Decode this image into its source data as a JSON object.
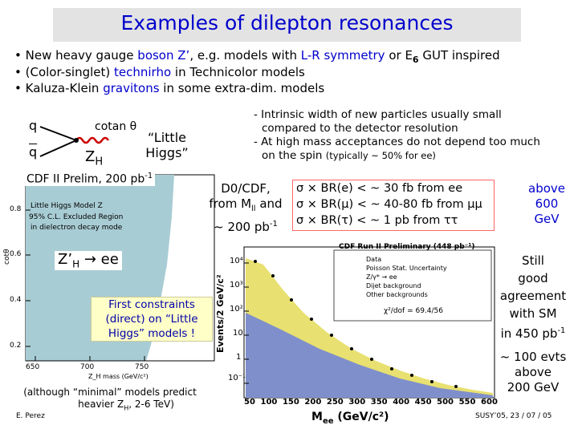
{
  "slide": {
    "title": "Examples of dilepton resonances",
    "bullets": [
      {
        "p1": "• New heavy gauge ",
        "k1": "boson Z’",
        ",": "",
        "p2": ", e.g. models with ",
        "k2": "L-R symmetry",
        "p3": " or E",
        "sub": "6",
        "p4": " GUT inspired"
      },
      {
        "p1": "• (Color-singlet) ",
        "k1": "technirho",
        "p2": " in Technicolor models"
      },
      {
        "p1": "• Kaluza-Klein ",
        "k1": "gravitons",
        "p2": " in some extra-dim. models"
      }
    ],
    "diagram": {
      "q_top": "q",
      "q_bottom": "q",
      "coupling": "cotan θ",
      "boson": "Z",
      "boson_sub": "H",
      "model_line1": "“Little",
      "model_line2": "Higgs”"
    },
    "notes": {
      "line1": "- Intrinsic width of new particles usually small",
      "line2": "compared to the detector resolution",
      "line3": "- At high mass acceptances do not depend too much",
      "line4": "on the spin ",
      "line4_small": "(typically ~ 50% for ee)"
    },
    "cdf_label": {
      "text": "CDF II Prelim, 200 pb",
      "sup": "-1"
    },
    "d0": {
      "line1": "D0/CDF,",
      "line2a": "from M",
      "line2sub": "ll",
      "line2b": " and",
      "line3a": "~ 200 pb",
      "line3sup": "-1",
      "br1": "σ × BR(e) < ~ 30 fb from ee",
      "br2": "σ × BR(μ) < ~ 40-80 fb from μμ",
      "br3": "σ × BR(τ) < ~ 1 pb from ττ",
      "above1": "above",
      "above2": "600",
      "above3": "GeV"
    },
    "left_plot": {
      "model_text": "Little Higgs Model Z",
      "excl1": "95% C.L. Excluded Region",
      "excl2": "in dielectron decay mode",
      "ylabel": "cotθ",
      "yticks": [
        "0.8",
        "0.6",
        "0.4",
        "0.2"
      ],
      "xticks": [
        "650",
        "700",
        "750"
      ],
      "xlabel": "Z_H mass (GeV/c²)",
      "zh_label": "Z’",
      "zh_sub": "H",
      "zh_arrow": " → ee",
      "constraint1": "First constraints",
      "constraint2": "(direct) on “Little",
      "constraint3": "Higgs” models !"
    },
    "right_plot": {
      "header": "CDF Run II Preliminary (448 pb⁻¹)",
      "legend": [
        "Data",
        "Poisson Stat. Uncertainty",
        "Z/γ* → ee",
        "Dijet background",
        "Other backgrounds"
      ],
      "chi2": "χ²/dof = 69.4/56",
      "ylabel": "Events/2 GeV/c²",
      "yticks": [
        "10⁴",
        "10³",
        "10²",
        "10",
        "1",
        "10⁻¹"
      ],
      "xticks": [
        "50",
        "100",
        "150",
        "200",
        "250",
        "300",
        "350",
        "400",
        "450",
        "500",
        "550",
        "600"
      ],
      "xlabel": "M",
      "xlabel_sub": "ee",
      "xlabel_unit": " (GeV/c²)"
    },
    "still": {
      "l1": "Still",
      "l2": "good",
      "l3": "agreement",
      "l4": "with SM",
      "l5a": "in 450 pb",
      "l5sup": "-1"
    },
    "evts": {
      "l1": "~ 100 evts",
      "l2": "above",
      "l3": "200 GeV"
    },
    "footnote": {
      "l1": "(although “minimal” models predict",
      "l2a": "heavier Z",
      "l2sub": "H",
      "l2b": ", 2-6 TeV)"
    },
    "author": "E. Perez",
    "conference": "SUSY’05, 23 / 07 / 05"
  },
  "colors": {
    "title": "#0000cc",
    "accent": "#0000cc",
    "excluded": "#a8ccd4",
    "mc": "#e8e070",
    "dijet": "#7f8fcc"
  }
}
